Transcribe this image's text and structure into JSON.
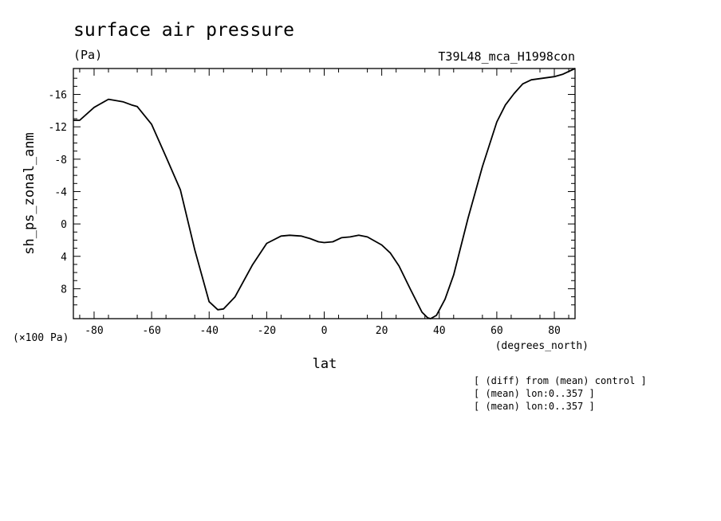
{
  "title": "surface air pressure",
  "unit": "(Pa)",
  "experiment": "T39L48_mca_H1998con",
  "ylabel": "sh_ps_zonal_anm",
  "yscale": "(×100 Pa)",
  "xlabel": "lat",
  "xunit": "(degrees_north)",
  "notes": [
    "[ (diff) from (mean) control ]",
    "[ (mean) lon:0..357 ]",
    "[ (mean) lon:0..357 ]"
  ],
  "chart_data": {
    "type": "line",
    "xlim": [
      -87.2,
      87.2
    ],
    "ylim": [
      11.7,
      -19.2
    ],
    "y_inverted": true,
    "x_ticks": [
      -80,
      -60,
      -40,
      -20,
      0,
      20,
      40,
      60,
      80
    ],
    "x_tick_labels": [
      "-80",
      "-60",
      "-40",
      "-20",
      "0",
      "20",
      "40",
      "60",
      "80"
    ],
    "y_ticks": [
      -16,
      -12,
      -8,
      -4,
      0,
      4,
      8
    ],
    "y_tick_labels": [
      "-16",
      "-12",
      "-8",
      "-4",
      "0",
      "4",
      "8"
    ],
    "grid": false,
    "series": [
      {
        "color": "#000000",
        "x": [
          -87.2,
          -85,
          -80,
          -75,
          -70,
          -67,
          -65,
          -60,
          -55,
          -50,
          -45,
          -40,
          -37,
          -35,
          -31,
          -25,
          -20,
          -15,
          -12,
          -8,
          -5,
          -2,
          0,
          3,
          6,
          9,
          12,
          15,
          20,
          23,
          26,
          30,
          34,
          36,
          37,
          39,
          42,
          45,
          50,
          55,
          60,
          63,
          66,
          69,
          72,
          76,
          80,
          83,
          87.2
        ],
        "y": [
          -12.8,
          -12.8,
          -14.4,
          -15.4,
          -15.1,
          -14.7,
          -14.5,
          -12.3,
          -8.3,
          -4.2,
          3.2,
          9.6,
          10.6,
          10.5,
          9.0,
          5.1,
          2.4,
          1.5,
          1.4,
          1.5,
          1.8,
          2.2,
          2.3,
          2.2,
          1.7,
          1.6,
          1.4,
          1.6,
          2.6,
          3.6,
          5.2,
          8.1,
          10.9,
          11.6,
          11.7,
          11.3,
          9.3,
          6.3,
          -0.7,
          -7.1,
          -12.6,
          -14.7,
          -16.1,
          -17.3,
          -17.8,
          -18.0,
          -18.2,
          -18.5,
          -19.2
        ]
      }
    ]
  }
}
